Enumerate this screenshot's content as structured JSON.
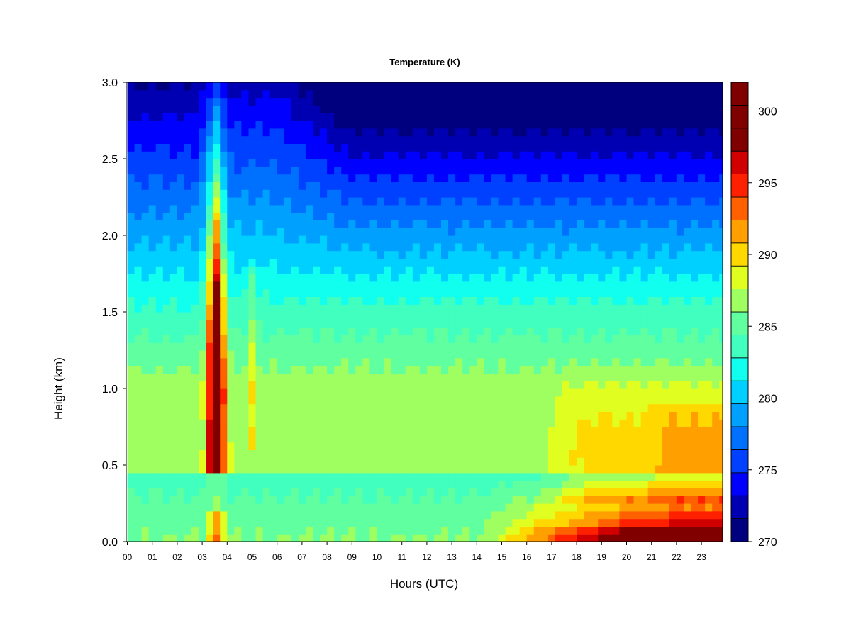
{
  "chart_data": {
    "type": "heatmap",
    "title": "Temperature (K)",
    "xlabel": "Hours (UTC)",
    "ylabel": "Height (km)",
    "xlim": [
      0,
      24
    ],
    "ylim": [
      0,
      3.0
    ],
    "x_ticks": [
      0,
      1,
      2,
      3,
      4,
      5,
      6,
      7,
      8,
      9,
      10,
      11,
      12,
      13,
      14,
      15,
      16,
      17,
      18,
      19,
      20,
      21,
      22,
      23
    ],
    "x_tick_labels": [
      "00",
      "01",
      "02",
      "03",
      "04",
      "05",
      "06",
      "07",
      "08",
      "09",
      "10",
      "11",
      "12",
      "13",
      "14",
      "15",
      "16",
      "17",
      "18",
      "19",
      "20",
      "21",
      "22",
      "23"
    ],
    "y_ticks": [
      0.0,
      0.5,
      1.0,
      1.5,
      2.0,
      2.5,
      3.0
    ],
    "y_tick_labels": [
      "0.0",
      "0.5",
      "1.0",
      "1.5",
      "2.0",
      "2.5",
      "3.0"
    ],
    "colorbar": {
      "levels": [
        270,
        271.6,
        273.2,
        274.8,
        276.4,
        278,
        279.6,
        281.2,
        282.8,
        284.4,
        286,
        287.6,
        289.2,
        290.8,
        292.4,
        294,
        295.6,
        297.2,
        298.8,
        300.4,
        302
      ],
      "colors": [
        "#00007F",
        "#0000B2",
        "#0000FF",
        "#0040FF",
        "#0070FF",
        "#00A0FF",
        "#00D0FF",
        "#10FFEF",
        "#40FFBF",
        "#60FF9F",
        "#9FFF60",
        "#E0FF20",
        "#FFD800",
        "#FFA000",
        "#FF6000",
        "#FF2000",
        "#D00000",
        "#800000",
        "#800000",
        "#800000"
      ],
      "ticks": [
        270,
        275,
        280,
        285,
        290,
        295,
        300
      ],
      "tick_labels": [
        "270",
        "275",
        "280",
        "285",
        "290",
        "295",
        "300"
      ]
    },
    "grid": false
  }
}
